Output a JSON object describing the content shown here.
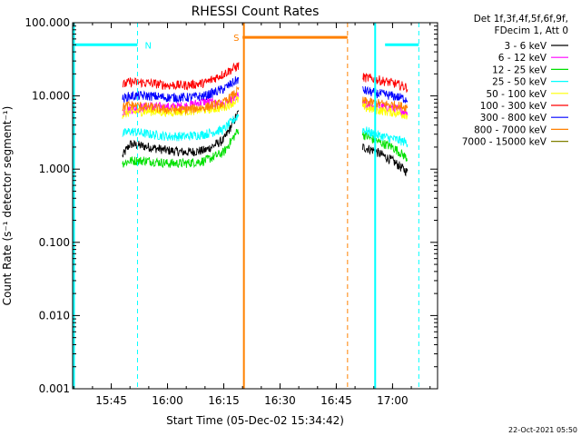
{
  "chart_data": {
    "type": "line",
    "title": "RHESSI Count Rates",
    "xlabel": "Start Time (05-Dec-02 15:34:42)",
    "ylabel": "Count Rate (s⁻¹ detector segment⁻¹)",
    "xlim": [
      "15:34:42",
      "17:12:00"
    ],
    "ylim": [
      0.001,
      100
    ],
    "yscale": "log",
    "x_ticks": [
      "15:45",
      "16:00",
      "16:15",
      "16:30",
      "16:45",
      "17:00"
    ],
    "y_ticks": [
      "0.001",
      "0.010",
      "0.100",
      "1.000",
      "10.000",
      "100.000"
    ],
    "legend": {
      "placement": "right",
      "header": [
        "Det 1f,3f,4f,5f,6f,9f,",
        "FDecim 1, Att 0"
      ]
    },
    "series": [
      {
        "name": "3 - 6 keV",
        "color": "#000000",
        "segments": [
          {
            "x": [
              "15:48",
              "15:50",
              "15:55",
              "16:00",
              "16:05",
              "16:10",
              "16:15",
              "16:19"
            ],
            "y": [
              1.5,
              2.2,
              2.0,
              1.8,
              1.7,
              1.8,
              2.5,
              6.0
            ]
          },
          {
            "x": [
              "16:52",
              "16:55",
              "17:00",
              "17:04"
            ],
            "y": [
              2.0,
              1.8,
              1.3,
              0.9
            ]
          }
        ]
      },
      {
        "name": "6 - 12 keV",
        "color": "#ff00ff",
        "segments": [
          {
            "x": [
              "15:48",
              "15:50",
              "15:55",
              "16:00",
              "16:05",
              "16:10",
              "16:15",
              "16:19"
            ],
            "y": [
              6.0,
              6.5,
              7.2,
              7.0,
              7.3,
              8.4,
              7.5,
              10.0
            ]
          },
          {
            "x": [
              "16:52",
              "16:55",
              "17:00",
              "17:04"
            ],
            "y": [
              7.5,
              7.3,
              6.8,
              6.0
            ]
          }
        ]
      },
      {
        "name": "12 - 25 keV",
        "color": "#00e000",
        "segments": [
          {
            "x": [
              "15:48",
              "15:50",
              "15:55",
              "16:00",
              "16:05",
              "16:10",
              "16:15",
              "16:19"
            ],
            "y": [
              1.2,
              1.3,
              1.3,
              1.2,
              1.2,
              1.3,
              1.7,
              3.5
            ]
          },
          {
            "x": [
              "16:52",
              "16:55",
              "17:00",
              "17:04"
            ],
            "y": [
              3.0,
              2.5,
              2.0,
              1.4
            ]
          }
        ]
      },
      {
        "name": "25 - 50 keV",
        "color": "#00ffff",
        "segments": [
          {
            "x": [
              "15:48",
              "15:50",
              "15:55",
              "16:00",
              "16:05",
              "16:10",
              "16:15",
              "16:19"
            ],
            "y": [
              3.0,
              3.3,
              3.0,
              2.8,
              2.8,
              3.0,
              3.5,
              5.5
            ]
          },
          {
            "x": [
              "16:52",
              "16:55",
              "17:00",
              "17:04"
            ],
            "y": [
              3.5,
              3.0,
              2.6,
              2.3
            ]
          }
        ]
      },
      {
        "name": "50 - 100 keV",
        "color": "#ffff00",
        "segments": [
          {
            "x": [
              "15:48",
              "15:50",
              "15:55",
              "16:00",
              "16:05",
              "16:10",
              "16:15",
              "16:19"
            ],
            "y": [
              5.5,
              6.0,
              6.2,
              6.0,
              6.2,
              6.5,
              7.0,
              9.0
            ]
          },
          {
            "x": [
              "16:52",
              "16:55",
              "17:00",
              "17:04"
            ],
            "y": [
              7.0,
              6.5,
              6.0,
              5.5
            ]
          }
        ]
      },
      {
        "name": "100 - 300 keV",
        "color": "#ff0000",
        "segments": [
          {
            "x": [
              "15:48",
              "15:50",
              "15:55",
              "16:00",
              "16:05",
              "16:10",
              "16:15",
              "16:19"
            ],
            "y": [
              14.0,
              15.5,
              15.0,
              14.0,
              14.0,
              15.0,
              20.0,
              26.0
            ]
          },
          {
            "x": [
              "16:52",
              "16:55",
              "17:00",
              "17:04"
            ],
            "y": [
              18.0,
              17.0,
              15.0,
              13.0
            ]
          }
        ]
      },
      {
        "name": "300 - 800 keV",
        "color": "#0000ff",
        "segments": [
          {
            "x": [
              "15:48",
              "15:50",
              "15:55",
              "16:00",
              "16:05",
              "16:10",
              "16:15",
              "16:19"
            ],
            "y": [
              9.0,
              10.0,
              10.0,
              9.5,
              9.5,
              10.0,
              12.5,
              17.0
            ]
          },
          {
            "x": [
              "16:52",
              "16:55",
              "17:00",
              "17:04"
            ],
            "y": [
              12.0,
              11.0,
              10.0,
              9.0
            ]
          }
        ]
      },
      {
        "name": "800 - 7000 keV",
        "color": "#ff8000",
        "segments": [
          {
            "x": [
              "15:48",
              "15:50",
              "15:55",
              "16:00",
              "16:05",
              "16:10",
              "16:15",
              "16:19"
            ],
            "y": [
              7.0,
              7.5,
              7.0,
              6.5,
              6.5,
              7.0,
              8.0,
              12.0
            ]
          },
          {
            "x": [
              "16:52",
              "16:55",
              "17:00",
              "17:04"
            ],
            "y": [
              8.5,
              8.0,
              7.5,
              7.0
            ]
          }
        ]
      },
      {
        "name": "7000 - 15000 keV",
        "color": "#808000",
        "segments": []
      }
    ],
    "annotations": [
      {
        "label": "N",
        "color": "#00ffff",
        "level": 50,
        "bars": [
          [
            "15:34:42",
            "15:52"
          ],
          [
            "16:58",
            "17:07"
          ]
        ],
        "dashed_lines": [
          "15:52",
          "17:07"
        ],
        "solid_lines": [
          "15:34:42",
          "16:55"
        ]
      },
      {
        "label": "S",
        "color": "#ff8000",
        "level": 63,
        "bars": [
          [
            "16:20",
            "16:48"
          ]
        ],
        "dashed_lines": [
          "16:48"
        ],
        "solid_lines": [
          "16:20"
        ]
      }
    ],
    "timestamp": "22-Oct-2021 05:50"
  }
}
